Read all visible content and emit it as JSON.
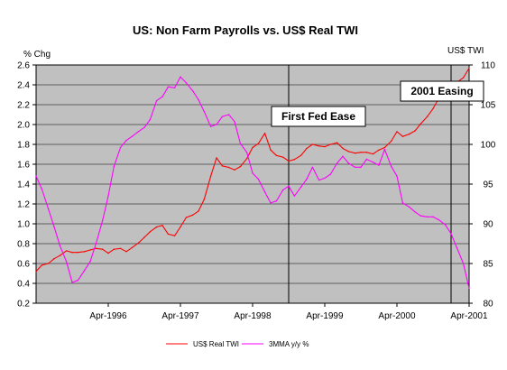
{
  "chart_data": {
    "type": "line",
    "title": "US: Non Farm Payrolls vs. US$ Real TWI",
    "left_axis": {
      "label": "% Chg",
      "ylim": [
        0.2,
        2.6
      ],
      "ticks": [
        "0.2",
        "0.4",
        "0.6",
        "0.8",
        "1.0",
        "1.2",
        "1.4",
        "1.6",
        "1.8",
        "2.0",
        "2.2",
        "2.4",
        "2.6"
      ]
    },
    "right_axis": {
      "label": "US$ TWI",
      "ylim": [
        80,
        110
      ],
      "ticks": [
        "80",
        "85",
        "90",
        "95",
        "100",
        "105",
        "110"
      ]
    },
    "x_ticks": [
      {
        "label": "Apr-1996",
        "x": 1996.25
      },
      {
        "label": "Apr-1997",
        "x": 1997.25
      },
      {
        "label": "Apr-1998",
        "x": 1998.25
      },
      {
        "label": "Apr-1999",
        "x": 1999.25
      },
      {
        "label": "Apr-2000",
        "x": 2000.25
      },
      {
        "label": "Apr-2001",
        "x": 2001.25
      }
    ],
    "xlim": [
      1995.25,
      2001.25
    ],
    "annotations": [
      {
        "text": "First Fed Ease",
        "x": 1998.75
      },
      {
        "text": "2001 Easing",
        "x": 2001.0
      }
    ],
    "grid": true,
    "legend_position": "bottom",
    "series": [
      {
        "name": "US$ Real TWI",
        "color": "#ff0000",
        "axis": "right",
        "x": [
          1995.25,
          1995.33,
          1995.42,
          1995.5,
          1995.58,
          1995.67,
          1995.75,
          1995.83,
          1995.92,
          1996.0,
          1996.08,
          1996.17,
          1996.25,
          1996.33,
          1996.42,
          1996.5,
          1996.58,
          1996.67,
          1996.75,
          1996.83,
          1996.92,
          1997.0,
          1997.08,
          1997.17,
          1997.25,
          1997.33,
          1997.42,
          1997.5,
          1997.58,
          1997.67,
          1997.75,
          1997.83,
          1997.92,
          1998.0,
          1998.08,
          1998.17,
          1998.25,
          1998.33,
          1998.42,
          1998.5,
          1998.58,
          1998.67,
          1998.75,
          1998.83,
          1998.92,
          1999.0,
          1999.08,
          1999.17,
          1999.25,
          1999.33,
          1999.42,
          1999.5,
          1999.58,
          1999.67,
          1999.75,
          1999.83,
          1999.92,
          2000.0,
          2000.08,
          2000.17,
          2000.25,
          2000.33,
          2000.42,
          2000.5,
          2000.58,
          2000.67,
          2000.75,
          2000.83,
          2000.92,
          2001.0,
          2001.08,
          2001.17,
          2001.25
        ],
        "values": [
          84.0,
          84.8,
          85.0,
          85.6,
          86.0,
          86.6,
          86.4,
          86.4,
          86.5,
          86.7,
          86.9,
          86.8,
          86.3,
          86.8,
          86.9,
          86.5,
          87.0,
          87.6,
          88.3,
          89.0,
          89.6,
          89.8,
          88.7,
          88.5,
          89.6,
          90.8,
          91.1,
          91.6,
          93.1,
          96.0,
          98.3,
          97.3,
          97.1,
          96.8,
          97.2,
          98.2,
          99.6,
          100.1,
          101.4,
          99.3,
          98.6,
          98.4,
          97.9,
          98.1,
          98.6,
          99.5,
          100.0,
          99.8,
          99.7,
          100.0,
          100.2,
          99.5,
          99.1,
          98.9,
          99.0,
          99.0,
          98.8,
          99.3,
          99.6,
          100.4,
          101.6,
          101.0,
          101.3,
          101.7,
          102.6,
          103.5,
          104.5,
          105.8,
          106.8,
          107.2,
          107.8,
          108.4,
          109.6
        ]
      },
      {
        "name": "3MMA y/y %",
        "color": "#ff00ff",
        "axis": "left",
        "x": [
          1995.25,
          1995.33,
          1995.42,
          1995.5,
          1995.58,
          1995.67,
          1995.75,
          1995.83,
          1995.92,
          1996.0,
          1996.08,
          1996.17,
          1996.25,
          1996.33,
          1996.42,
          1996.5,
          1996.58,
          1996.67,
          1996.75,
          1996.83,
          1996.92,
          1997.0,
          1997.08,
          1997.17,
          1997.25,
          1997.33,
          1997.42,
          1997.5,
          1997.58,
          1997.67,
          1997.75,
          1997.83,
          1997.92,
          1998.0,
          1998.08,
          1998.17,
          1998.25,
          1998.33,
          1998.42,
          1998.5,
          1998.58,
          1998.67,
          1998.75,
          1998.83,
          1998.92,
          1999.0,
          1999.08,
          1999.17,
          1999.25,
          1999.33,
          1999.42,
          1999.5,
          1999.58,
          1999.67,
          1999.75,
          1999.83,
          1999.92,
          2000.0,
          2000.08,
          2000.17,
          2000.25,
          2000.33,
          2000.42,
          2000.5,
          2000.58,
          2000.67,
          2000.75,
          2000.83,
          2000.92,
          2001.0,
          2001.08,
          2001.17,
          2001.25
        ],
        "values": [
          1.48,
          1.35,
          1.15,
          0.97,
          0.78,
          0.62,
          0.41,
          0.43,
          0.53,
          0.62,
          0.8,
          1.03,
          1.28,
          1.58,
          1.77,
          1.84,
          1.88,
          1.93,
          1.97,
          2.05,
          2.24,
          2.28,
          2.38,
          2.37,
          2.48,
          2.42,
          2.34,
          2.25,
          2.13,
          1.98,
          2.0,
          2.08,
          2.1,
          2.03,
          1.81,
          1.72,
          1.51,
          1.45,
          1.32,
          1.21,
          1.23,
          1.34,
          1.38,
          1.28,
          1.37,
          1.45,
          1.57,
          1.44,
          1.46,
          1.5,
          1.61,
          1.68,
          1.61,
          1.57,
          1.57,
          1.65,
          1.62,
          1.59,
          1.75,
          1.58,
          1.48,
          1.21,
          1.17,
          1.12,
          1.08,
          1.07,
          1.07,
          1.04,
          0.99,
          0.9,
          0.76,
          0.6,
          0.35
        ]
      }
    ]
  }
}
